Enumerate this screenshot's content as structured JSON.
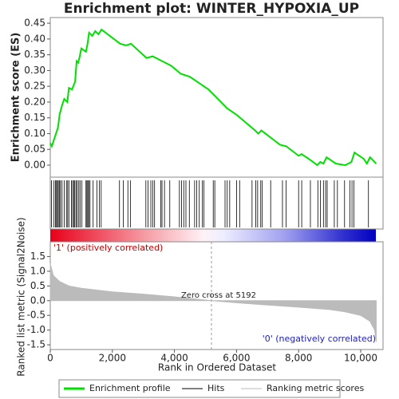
{
  "chart_data": [
    {
      "type": "line",
      "title": "Enrichment plot: WINTER_HYPOXIA_UP",
      "ylabel": "Enrichment score (ES)",
      "x": [
        0,
        50,
        150,
        250,
        300,
        380,
        450,
        550,
        600,
        700,
        800,
        850,
        900,
        950,
        1000,
        1150,
        1200,
        1250,
        1350,
        1450,
        1550,
        1650,
        2250,
        2450,
        2600,
        3100,
        3300,
        3600,
        3900,
        4200,
        4500,
        4800,
        5100,
        5400,
        5700,
        6000,
        6300,
        6600,
        6700,
        6800,
        7000,
        7200,
        7400,
        7600,
        8000,
        8100,
        8400,
        8600,
        8700,
        8800,
        8900,
        9200,
        9500,
        9700,
        9800,
        10100,
        10200,
        10300,
        10500
      ],
      "series": [
        {
          "name": "Enrichment profile",
          "color": "#00e000",
          "values": [
            0.07,
            0.06,
            0.09,
            0.12,
            0.16,
            0.19,
            0.21,
            0.2,
            0.245,
            0.24,
            0.265,
            0.33,
            0.325,
            0.345,
            0.37,
            0.36,
            0.385,
            0.42,
            0.41,
            0.425,
            0.415,
            0.43,
            0.385,
            0.38,
            0.385,
            0.34,
            0.345,
            0.33,
            0.315,
            0.29,
            0.28,
            0.26,
            0.24,
            0.21,
            0.18,
            0.16,
            0.135,
            0.11,
            0.1,
            0.11,
            0.095,
            0.08,
            0.065,
            0.06,
            0.03,
            0.035,
            0.015,
            0.0,
            0.01,
            0.005,
            0.025,
            0.005,
            0.0,
            0.01,
            0.04,
            0.02,
            0.005,
            0.025,
            0.005
          ]
        }
      ],
      "hits_name": "Hits",
      "hits_color": "#000000",
      "hits": [
        40,
        120,
        170,
        200,
        230,
        260,
        300,
        330,
        380,
        450,
        520,
        560,
        600,
        680,
        720,
        760,
        790,
        830,
        870,
        920,
        960,
        1020,
        1150,
        1180,
        1210,
        1240,
        1280,
        1380,
        1500,
        1580,
        1640,
        2230,
        2350,
        2500,
        2580,
        3080,
        3150,
        3240,
        3300,
        3360,
        3560,
        3600,
        3680,
        3850,
        4160,
        4230,
        4300,
        4370,
        4480,
        4650,
        4720,
        4800,
        4900,
        4950,
        5250,
        5300,
        5630,
        5700,
        5780,
        6000,
        6100,
        6500,
        6620,
        6680,
        6780,
        6830,
        7100,
        7480,
        7600,
        8000,
        8100,
        8380,
        8620,
        8700,
        8800,
        8870,
        8920,
        9150,
        9250,
        9480,
        9650,
        9720,
        9780,
        10250
      ],
      "xlim": [
        0,
        10720
      ],
      "ylim": [
        -0.038,
        0.468
      ],
      "yticks": [
        {
          "value": 0,
          "label": "0.00"
        },
        {
          "value": 0.05,
          "label": "0.05"
        },
        {
          "value": 0.1,
          "label": "0.10"
        },
        {
          "value": 0.15,
          "label": "0.15"
        },
        {
          "value": 0.2,
          "label": "0.20"
        },
        {
          "value": 0.25,
          "label": "0.25"
        },
        {
          "value": 0.3,
          "label": "0.30"
        },
        {
          "value": 0.35,
          "label": "0.35"
        },
        {
          "value": 0.4,
          "label": "0.40"
        },
        {
          "value": 0.45,
          "label": "0.45"
        }
      ]
    },
    {
      "type": "area",
      "xlabel": "Rank in Ordered Dataset",
      "ylabel": "Ranked list metric (Signal2Noise)",
      "x": [
        0,
        100,
        300,
        600,
        1000,
        2000,
        3000,
        4000,
        5192,
        6000,
        7000,
        8000,
        9000,
        9500,
        10000,
        10300,
        10450,
        10500
      ],
      "series": [
        {
          "name": "Ranking metric scores",
          "color": "#bbbbbb",
          "values": [
            1.25,
            0.85,
            0.65,
            0.5,
            0.42,
            0.3,
            0.22,
            0.13,
            0,
            -0.07,
            -0.15,
            -0.22,
            -0.3,
            -0.38,
            -0.5,
            -0.7,
            -1.0,
            -1.4
          ]
        }
      ],
      "xlim": [
        0,
        10720
      ],
      "ylim": [
        -1.66,
        2.0
      ],
      "xticks": [
        0,
        {
          "value": 2000,
          "label": "2,000"
        },
        {
          "value": 4000,
          "label": "4,000"
        },
        {
          "value": 6000,
          "label": "6,000"
        },
        {
          "value": 8000,
          "label": "8,000"
        },
        {
          "value": 10000,
          "label": "10,000"
        }
      ],
      "yticks": [
        {
          "value": -1.5,
          "label": "-1.5"
        },
        {
          "value": -1,
          "label": "-1.0"
        },
        {
          "value": -0.5,
          "label": "-0.5"
        },
        {
          "value": 0,
          "label": "0.0"
        },
        {
          "value": 0.5,
          "label": "0.5"
        },
        {
          "value": 1,
          "label": "1.0"
        },
        {
          "value": 1.5,
          "label": "1.5"
        }
      ],
      "zero_cross": 5192,
      "zero_cross_label": "Zero cross at 5192",
      "pos_label": "'1' (positively correlated)",
      "neg_label": "'0' (negatively correlated)"
    }
  ]
}
